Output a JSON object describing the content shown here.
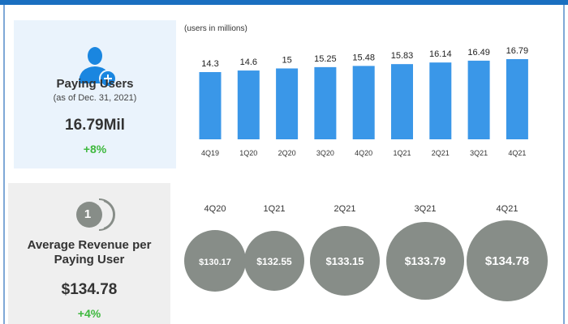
{
  "paying": {
    "title": "Paying Users",
    "subtitle": "(as of Dec. 31, 2021)",
    "value": "16.79Mil",
    "change": "+8%"
  },
  "arpu": {
    "title1": "Average Revenue per",
    "title2": "Paying User",
    "value": "$134.78",
    "change": "+4%",
    "icon_text": "1"
  },
  "colors": {
    "bar": "#3a97e8",
    "bubble": "#878d88",
    "green": "#3db83d"
  },
  "chart_data": [
    {
      "type": "bar",
      "title": "Paying Users",
      "ylabel": "(users in millions)",
      "categories": [
        "4Q19",
        "1Q20",
        "2Q20",
        "3Q20",
        "4Q20",
        "1Q21",
        "2Q21",
        "3Q21",
        "4Q21"
      ],
      "values": [
        14.3,
        14.6,
        15,
        15.25,
        15.48,
        15.83,
        16.14,
        16.49,
        16.79
      ],
      "labels": [
        "14.3",
        "14.6",
        "15",
        "15.25",
        "15.48",
        "15.83",
        "16.14",
        "16.49",
        "16.79"
      ]
    },
    {
      "type": "bubble",
      "title": "Average Revenue per Paying User",
      "categories": [
        "4Q20",
        "1Q21",
        "2Q21",
        "3Q21",
        "4Q21"
      ],
      "values": [
        130.17,
        132.55,
        133.15,
        133.79,
        134.78
      ],
      "labels": [
        "$130.17",
        "$132.55",
        "$133.15",
        "$133.79",
        "$134.78"
      ]
    }
  ]
}
